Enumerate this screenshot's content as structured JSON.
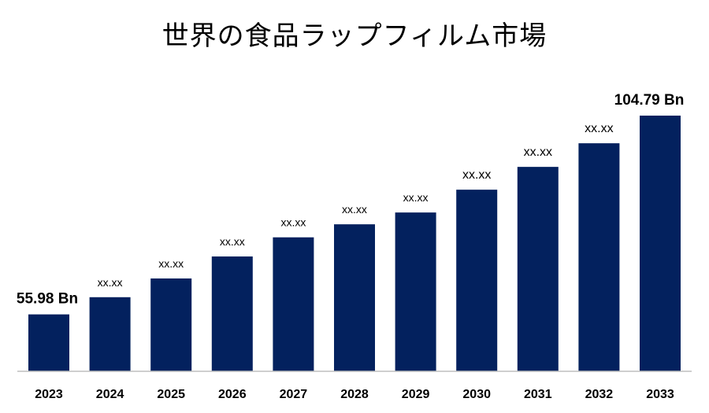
{
  "chart_data": {
    "type": "bar",
    "title": "世界の食品ラップフィルム市場",
    "xlabel": "",
    "ylabel": "",
    "categories": [
      "2023",
      "2024",
      "2025",
      "2026",
      "2027",
      "2028",
      "2029",
      "2030",
      "2031",
      "2032",
      "2033"
    ],
    "values": [
      55.98,
      60.2,
      64.8,
      70.2,
      74.9,
      78.1,
      81.0,
      86.6,
      92.2,
      98.0,
      104.79
    ],
    "labels": [
      "55.98 Bn",
      "xx.xx",
      "xx.xx",
      "xx.xx",
      "xx.xx",
      "xx.xx",
      "xx.xx",
      "xx.xx",
      "xx.xx",
      "xx.xx",
      "104.79 Bn"
    ],
    "ylim": [
      42,
      110
    ],
    "grid": false,
    "colors": {
      "bar": "#03215e"
    }
  }
}
